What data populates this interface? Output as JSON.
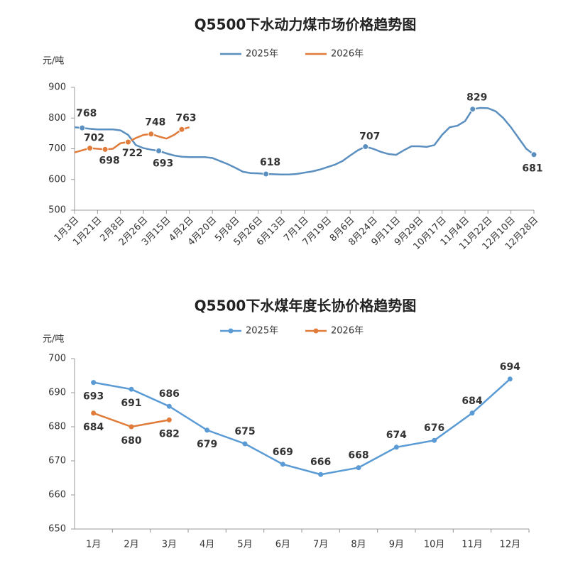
{
  "chart_data": [
    {
      "type": "line",
      "title": "Q5500下水动力煤市场价格趋势图",
      "y_label": "元/吨",
      "ylim": [
        500,
        900
      ],
      "yticks": [
        500,
        600,
        700,
        800,
        900
      ],
      "categories": [
        "1月3日",
        null,
        null,
        "1月21日",
        null,
        null,
        "2月8日",
        null,
        null,
        "2月26日",
        null,
        null,
        "3月15日",
        null,
        null,
        "4月2日",
        null,
        null,
        "4月20日",
        null,
        null,
        "5月8日",
        null,
        null,
        "5月26日",
        null,
        null,
        "6月13日",
        null,
        null,
        "7月1日",
        null,
        null,
        "7月19日",
        null,
        null,
        "8月6日",
        null,
        null,
        "8月24日",
        null,
        null,
        "9月11日",
        null,
        null,
        "9月29日",
        null,
        null,
        "10月17日",
        null,
        null,
        "11月4日",
        null,
        null,
        "11月22日",
        null,
        null,
        "12月10日",
        null,
        null,
        "12月28日"
      ],
      "series": [
        {
          "name": "2025年",
          "color": "#5b8fc0",
          "values": [
            770,
            768,
            765,
            763,
            763,
            763,
            760,
            745,
            712,
            702,
            697,
            693,
            685,
            678,
            674,
            673,
            673,
            673,
            670,
            660,
            650,
            638,
            625,
            621,
            620,
            618,
            617,
            616,
            616,
            618,
            622,
            626,
            632,
            640,
            648,
            660,
            678,
            695,
            707,
            700,
            690,
            683,
            680,
            695,
            708,
            708,
            706,
            712,
            745,
            770,
            775,
            790,
            829,
            833,
            832,
            822,
            800,
            770,
            735,
            700,
            681
          ],
          "value_labels": [
            null,
            "768",
            null,
            null,
            null,
            null,
            null,
            null,
            null,
            null,
            null,
            "693",
            null,
            null,
            null,
            null,
            null,
            null,
            null,
            null,
            null,
            null,
            null,
            null,
            null,
            "618",
            null,
            null,
            null,
            null,
            null,
            null,
            null,
            null,
            null,
            null,
            null,
            null,
            "707",
            null,
            null,
            null,
            null,
            null,
            null,
            null,
            null,
            null,
            null,
            null,
            null,
            null,
            "829",
            null,
            null,
            null,
            null,
            null,
            null,
            null,
            "681"
          ]
        },
        {
          "name": "2026年",
          "color": "#e07b39",
          "values": [
            688,
            695,
            702,
            700,
            698,
            700,
            718,
            722,
            735,
            745,
            748,
            740,
            733,
            745,
            763,
            770,
            null,
            null,
            null,
            null,
            null,
            null,
            null,
            null,
            null,
            null,
            null,
            null,
            null,
            null,
            null,
            null,
            null,
            null,
            null,
            null,
            null,
            null,
            null,
            null,
            null,
            null,
            null,
            null,
            null,
            null,
            null,
            null,
            null,
            null,
            null,
            null,
            null,
            null,
            null,
            null,
            null,
            null,
            null,
            null,
            null
          ],
          "value_labels": [
            null,
            null,
            "702",
            null,
            "698",
            null,
            null,
            "722",
            null,
            null,
            "748",
            null,
            null,
            null,
            "763",
            null,
            null,
            null,
            null,
            null,
            null,
            null,
            null,
            null,
            null,
            null,
            null,
            null,
            null,
            null,
            null,
            null,
            null,
            null,
            null,
            null,
            null,
            null,
            null,
            null,
            null,
            null,
            null,
            null,
            null,
            null,
            null,
            null,
            null,
            null,
            null,
            null,
            null,
            null,
            null,
            null,
            null,
            null,
            null,
            null,
            null
          ]
        }
      ]
    },
    {
      "type": "line",
      "title": "Q5500下水煤年度长协价格趋势图",
      "y_label": "元/吨",
      "data_labels": true,
      "ylim": [
        650,
        700
      ],
      "yticks": [
        650,
        660,
        670,
        680,
        690,
        700
      ],
      "categories": [
        "1月",
        "2月",
        "3月",
        "4月",
        "5月",
        "6月",
        "7月",
        "8月",
        "9月",
        "10月",
        "11月",
        "12月"
      ],
      "series": [
        {
          "name": "2025年",
          "color": "#5b9bd5",
          "values": [
            693,
            691,
            686,
            679,
            675,
            669,
            666,
            668,
            674,
            676,
            684,
            694
          ]
        },
        {
          "name": "2026年",
          "color": "#e07b39",
          "values": [
            684,
            680,
            682,
            null,
            null,
            null,
            null,
            null,
            null,
            null,
            null,
            null
          ]
        }
      ]
    }
  ]
}
